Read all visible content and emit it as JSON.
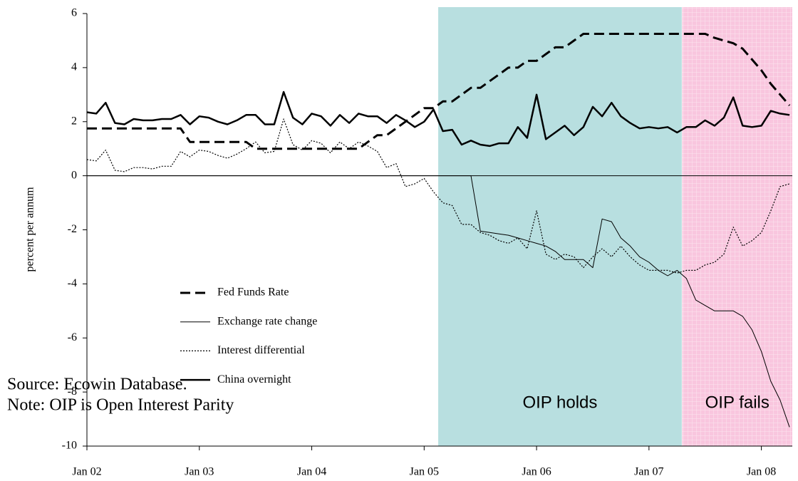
{
  "chart_data": {
    "type": "line",
    "y_label": "percent per annum",
    "xlim": [
      0,
      75.3
    ],
    "xticks": [
      {
        "value": 0,
        "label": "Jan 02"
      },
      {
        "value": 12,
        "label": "Jan 03"
      },
      {
        "value": 24,
        "label": "Jan 04"
      },
      {
        "value": 36,
        "label": "Jan 05"
      },
      {
        "value": 48,
        "label": "Jan 06"
      },
      {
        "value": 60,
        "label": "Jan 07"
      },
      {
        "value": 72,
        "label": "Jan 08"
      }
    ],
    "ylim": [
      -10,
      6
    ],
    "yticks": [
      -10,
      -8,
      -6,
      -4,
      -2,
      0,
      2,
      4,
      6
    ],
    "regions": [
      {
        "label": "OIP holds",
        "x": [
          37.5,
          63.5
        ],
        "color": "#b8dfe0"
      },
      {
        "label": "OIP fails",
        "x": [
          63.55,
          75.3
        ],
        "color": "#f9c6de"
      }
    ],
    "series": [
      {
        "name": "Fed Funds Rate",
        "color": "#000000",
        "style": "dashed",
        "values": [
          1.75,
          1.75,
          1.75,
          1.75,
          1.75,
          1.75,
          1.75,
          1.75,
          1.75,
          1.75,
          1.75,
          1.25,
          1.25,
          1.25,
          1.25,
          1.25,
          1.25,
          1.25,
          1.0,
          1.0,
          1.0,
          1.0,
          1.0,
          1.0,
          1.0,
          1.0,
          1.0,
          1.0,
          1.0,
          1.0,
          1.25,
          1.5,
          1.5,
          1.75,
          2.0,
          2.25,
          2.5,
          2.5,
          2.75,
          2.75,
          3.0,
          3.25,
          3.25,
          3.5,
          3.75,
          4.0,
          4.0,
          4.25,
          4.25,
          4.5,
          4.75,
          4.75,
          5.0,
          5.25,
          5.25,
          5.25,
          5.25,
          5.25,
          5.25,
          5.25,
          5.25,
          5.25,
          5.25,
          5.25,
          5.25,
          5.25,
          5.25,
          5.1,
          5.0,
          4.9,
          4.7,
          4.3,
          3.9,
          3.4,
          3.0,
          2.6
        ]
      },
      {
        "name": "Exchange rate change",
        "color": "#000000",
        "style": "solid",
        "values": [
          0,
          0,
          0,
          0,
          0,
          0,
          0,
          0,
          0,
          0,
          0,
          0,
          0,
          0,
          0,
          0,
          0,
          0,
          0,
          0,
          0,
          0,
          0,
          0,
          0,
          0,
          0,
          0,
          0,
          0,
          0,
          0,
          0,
          0,
          0,
          0,
          0,
          0,
          0,
          0,
          0,
          0,
          -2.05,
          -2.1,
          -2.15,
          -2.2,
          -2.3,
          -2.4,
          -2.5,
          -2.6,
          -2.8,
          -3.1,
          -3.1,
          -3.1,
          -3.4,
          -1.6,
          -1.7,
          -2.3,
          -2.6,
          -3.0,
          -3.2,
          -3.5,
          -3.7,
          -3.5,
          -3.8,
          -4.6,
          -4.8,
          -5.0,
          -5.0,
          -5.0,
          -5.2,
          -5.7,
          -6.5,
          -7.6,
          -8.3,
          -9.3
        ]
      },
      {
        "name": "Interest differential",
        "color": "#000000",
        "style": "dotted",
        "values": [
          0.6,
          0.55,
          0.95,
          0.2,
          0.15,
          0.3,
          0.3,
          0.25,
          0.35,
          0.35,
          0.9,
          0.7,
          0.95,
          0.9,
          0.75,
          0.65,
          0.8,
          1.0,
          1.25,
          0.85,
          0.9,
          2.1,
          1.15,
          0.95,
          1.3,
          1.2,
          0.85,
          1.25,
          1.0,
          1.25,
          1.1,
          0.9,
          0.3,
          0.45,
          -0.4,
          -0.3,
          -0.1,
          -0.6,
          -1.0,
          -1.1,
          -1.8,
          -1.8,
          -2.1,
          -2.2,
          -2.4,
          -2.5,
          -2.3,
          -2.7,
          -1.3,
          -2.9,
          -3.1,
          -2.9,
          -3.0,
          -3.4,
          -3.0,
          -2.7,
          -3.0,
          -2.6,
          -3.0,
          -3.3,
          -3.5,
          -3.5,
          -3.5,
          -3.6,
          -3.5,
          -3.5,
          -3.3,
          -3.2,
          -2.9,
          -1.9,
          -2.6,
          -2.4,
          -2.1,
          -1.3,
          -0.4,
          -0.3
        ]
      },
      {
        "name": "China overnight",
        "color": "#000000",
        "style": "thick",
        "values": [
          2.35,
          2.3,
          2.7,
          1.95,
          1.9,
          2.1,
          2.05,
          2.05,
          2.1,
          2.1,
          2.25,
          1.9,
          2.2,
          2.15,
          2.0,
          1.9,
          2.05,
          2.25,
          2.25,
          1.9,
          1.9,
          3.1,
          2.15,
          1.9,
          2.3,
          2.2,
          1.85,
          2.25,
          1.95,
          2.3,
          2.2,
          2.2,
          1.95,
          2.25,
          2.05,
          1.8,
          2.0,
          2.45,
          1.65,
          1.7,
          1.15,
          1.3,
          1.15,
          1.1,
          1.2,
          1.2,
          1.8,
          1.4,
          3.0,
          1.35,
          1.6,
          1.85,
          1.5,
          1.8,
          2.55,
          2.2,
          2.7,
          2.2,
          1.95,
          1.75,
          1.8,
          1.75,
          1.8,
          1.6,
          1.8,
          1.8,
          2.05,
          1.85,
          2.15,
          2.9,
          1.85,
          1.8,
          1.85,
          2.4,
          2.3,
          2.25
        ]
      }
    ],
    "annotations": [
      "Source: Ecowin Database.",
      "Note: OIP is Open Interest Parity"
    ]
  }
}
